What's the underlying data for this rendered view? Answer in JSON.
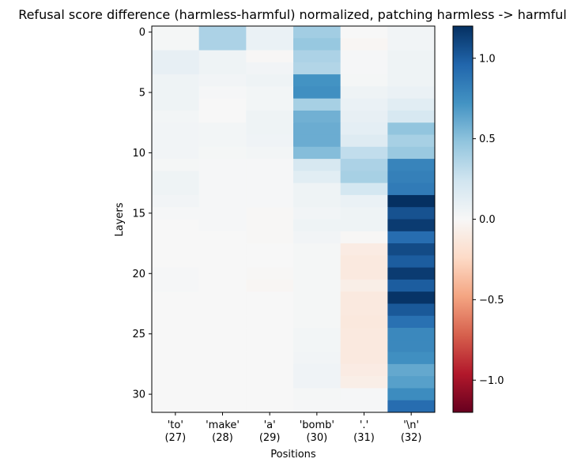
{
  "chart_data": {
    "type": "heatmap",
    "title": "Refusal score difference (harmless-harmful) normalized, patching harmless -> harmful",
    "xlabel": "Positions",
    "ylabel": "Layers",
    "x_categories": [
      "'to'\n(27)",
      "'make'\n(28)",
      "'a'\n(29)",
      "'bomb'\n(30)",
      "'.'\n(31)",
      "'\\n'\n(32)"
    ],
    "y_categories": [
      0,
      1,
      2,
      3,
      4,
      5,
      6,
      7,
      8,
      9,
      10,
      11,
      12,
      13,
      14,
      15,
      16,
      17,
      18,
      19,
      20,
      21,
      22,
      23,
      24,
      25,
      26,
      27,
      28,
      29,
      30,
      31
    ],
    "y_ticks": [
      0,
      5,
      10,
      15,
      20,
      25,
      30
    ],
    "colormap": "RdBu",
    "color_range": [
      -1.2,
      1.2
    ],
    "colorbar_ticks": [
      1.0,
      0.5,
      0.0,
      -0.5,
      -1.0
    ],
    "colorbar_tick_labels": [
      "1.0",
      "0.5",
      "0.0",
      "−0.5",
      "−1.0"
    ],
    "values": [
      [
        0.02,
        0.38,
        0.08,
        0.42,
        0.0,
        0.04
      ],
      [
        0.02,
        0.38,
        0.08,
        0.46,
        -0.02,
        0.04
      ],
      [
        0.1,
        0.06,
        -0.01,
        0.38,
        0.01,
        0.06
      ],
      [
        0.1,
        0.06,
        0.04,
        0.36,
        0.01,
        0.06
      ],
      [
        0.06,
        0.04,
        0.06,
        0.72,
        0.02,
        0.06
      ],
      [
        0.06,
        0.01,
        0.03,
        0.74,
        0.06,
        0.08
      ],
      [
        0.06,
        0.0,
        0.03,
        0.4,
        0.08,
        0.14
      ],
      [
        0.03,
        0.0,
        0.06,
        0.58,
        0.1,
        0.2
      ],
      [
        0.04,
        0.03,
        0.06,
        0.6,
        0.12,
        0.48
      ],
      [
        0.04,
        0.03,
        0.05,
        0.6,
        0.16,
        0.4
      ],
      [
        0.04,
        0.02,
        0.03,
        0.52,
        0.3,
        0.45
      ],
      [
        0.02,
        0.01,
        0.01,
        0.2,
        0.38,
        0.8
      ],
      [
        0.06,
        0.01,
        0.01,
        0.14,
        0.4,
        0.82
      ],
      [
        0.06,
        0.01,
        0.01,
        0.06,
        0.22,
        0.85
      ],
      [
        0.04,
        0.01,
        0.01,
        0.06,
        0.08,
        1.2
      ],
      [
        0.01,
        0.01,
        -0.01,
        0.04,
        0.06,
        1.05
      ],
      [
        0.0,
        0.01,
        -0.01,
        0.06,
        0.06,
        1.15
      ],
      [
        0.0,
        0.0,
        -0.01,
        0.04,
        -0.01,
        0.92
      ],
      [
        0.0,
        0.0,
        0.0,
        0.02,
        -0.1,
        1.08
      ],
      [
        0.0,
        0.0,
        0.0,
        0.02,
        -0.12,
        1.0
      ],
      [
        0.01,
        0.0,
        -0.01,
        0.02,
        -0.12,
        1.15
      ],
      [
        0.01,
        0.0,
        -0.02,
        0.02,
        -0.08,
        1.0
      ],
      [
        0.0,
        0.0,
        0.0,
        0.02,
        -0.12,
        1.18
      ],
      [
        0.0,
        0.0,
        0.0,
        0.02,
        -0.12,
        1.02
      ],
      [
        0.0,
        0.0,
        0.0,
        0.02,
        -0.13,
        0.9
      ],
      [
        0.0,
        0.0,
        0.0,
        0.03,
        -0.12,
        0.78
      ],
      [
        0.0,
        0.0,
        0.0,
        0.03,
        -0.12,
        0.78
      ],
      [
        0.0,
        0.0,
        0.0,
        0.04,
        -0.12,
        0.74
      ],
      [
        0.0,
        0.0,
        0.0,
        0.05,
        -0.1,
        0.62
      ],
      [
        0.0,
        0.0,
        0.0,
        0.05,
        -0.08,
        0.66
      ],
      [
        0.0,
        0.0,
        0.0,
        0.02,
        0.01,
        0.76
      ],
      [
        0.0,
        0.0,
        0.0,
        0.01,
        0.01,
        0.92
      ]
    ]
  }
}
